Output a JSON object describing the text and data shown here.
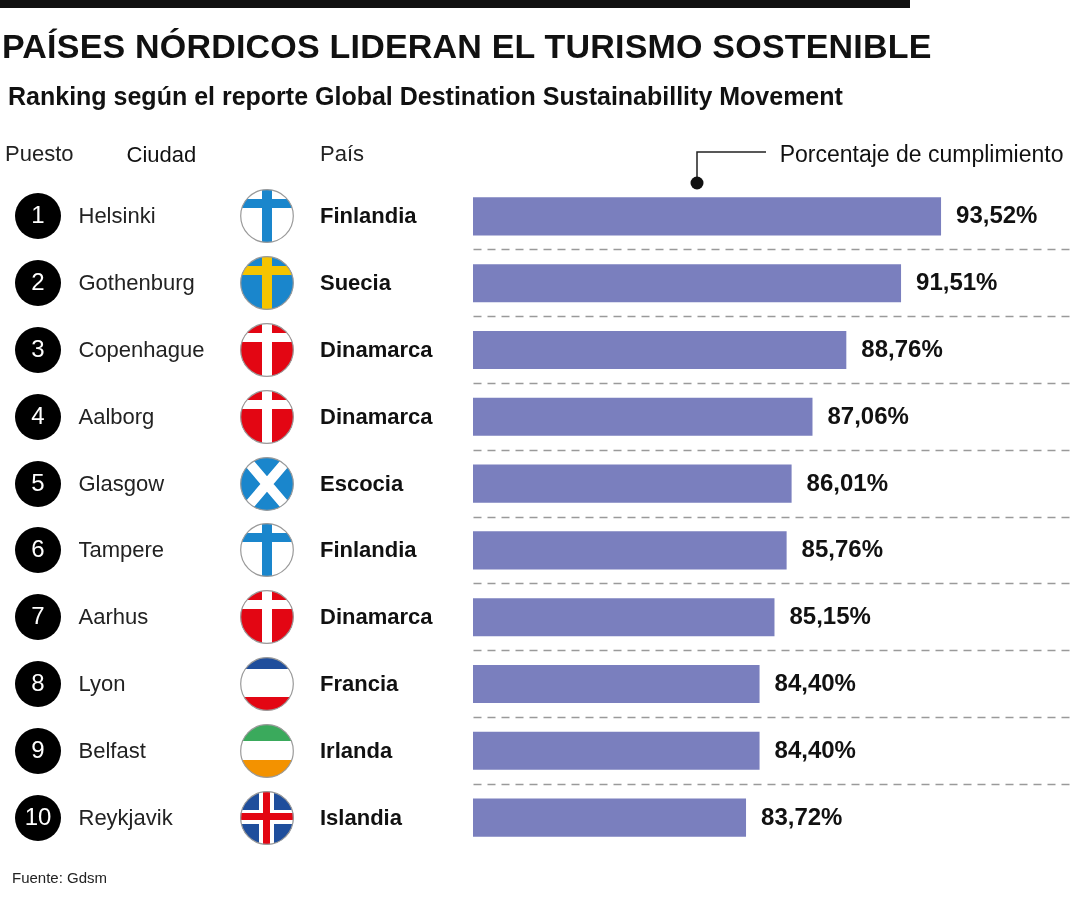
{
  "chart_data": {
    "type": "bar",
    "orientation": "horizontal",
    "title": "PAÍSES NÓRDICOS LIDERAN EL TURISMO SOSTENIBLE",
    "subtitle": "Ranking según el reporte Global Destination Sustainabillity Movement",
    "xlabel": "Porcentaje de cumplimiento",
    "ylabel": "Ciudad",
    "categories": [
      "Helsinki",
      "Gothenburg",
      "Copenhague",
      "Aalborg",
      "Glasgow",
      "Tampere",
      "Aarhus",
      "Lyon",
      "Belfast",
      "Reykjavik"
    ],
    "values": [
      93.52,
      91.51,
      88.76,
      87.06,
      86.01,
      85.76,
      85.15,
      84.4,
      84.4,
      83.72
    ],
    "value_labels": [
      "93,52%",
      "91,51%",
      "88,76%",
      "87,06%",
      "86,01%",
      "85,76%",
      "85,15%",
      "84,40%",
      "84,40%",
      "83,72%"
    ],
    "color": "#7a7fbe",
    "xlim": [
      70,
      100
    ],
    "tick_labels": "y",
    "grid": "y",
    "annotations": [
      "Puesto",
      "País",
      "1",
      "2",
      "3",
      "4",
      "5",
      "6",
      "7",
      "8",
      "9",
      "10",
      "Finlandia",
      "Suecia",
      "Dinamarca",
      "Dinamarca",
      "Escocia",
      "Finlandia",
      "Dinamarca",
      "Francia",
      "Irlanda",
      "Islandia",
      "Fuente: Gdsm"
    ]
  }
}
